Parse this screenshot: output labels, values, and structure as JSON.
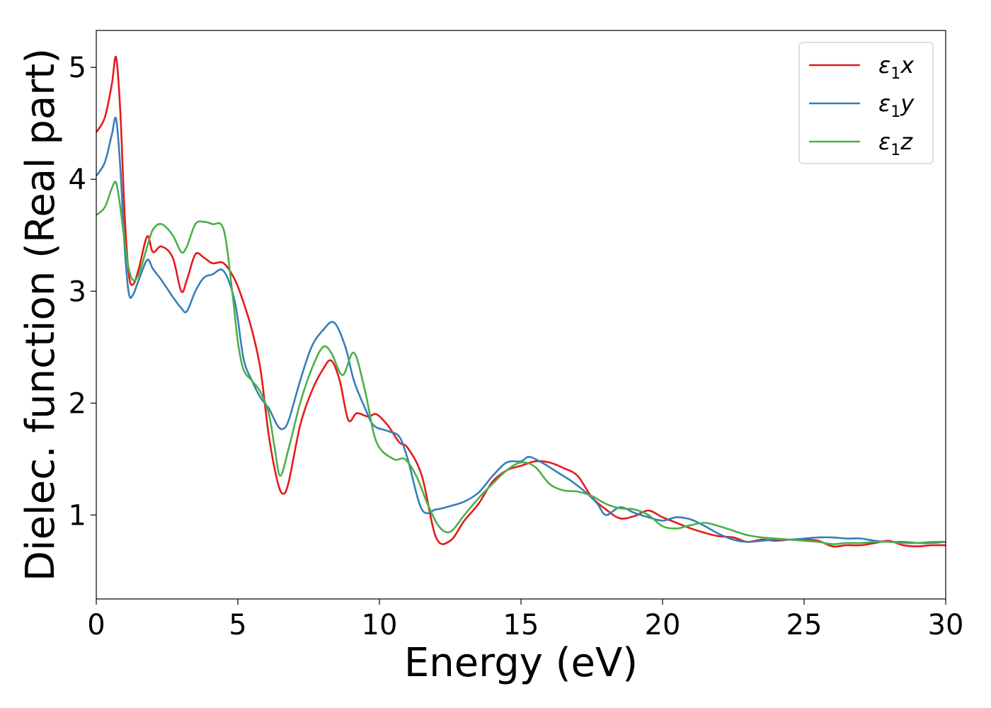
{
  "chart_data": {
    "type": "line",
    "title": "",
    "xlabel": "Energy (eV)",
    "ylabel": "Dielec. function (Real part)",
    "xlim": [
      0,
      30
    ],
    "ylim": [
      0.25,
      5.33
    ],
    "xticks": [
      0,
      5,
      10,
      15,
      20,
      25,
      30
    ],
    "yticks": [
      1,
      2,
      3,
      4,
      5
    ],
    "grid": false,
    "legend_position": "top-right",
    "series": [
      {
        "name": "ε1x",
        "name_base": "ε",
        "name_sub": "1",
        "name_suffix": "x",
        "color": "#e41a1c",
        "x": [
          0,
          0.3,
          0.55,
          0.7,
          0.85,
          1.0,
          1.15,
          1.3,
          1.5,
          1.8,
          2.0,
          2.3,
          2.7,
          3.0,
          3.2,
          3.5,
          3.8,
          4.1,
          4.5,
          4.9,
          5.2,
          5.5,
          5.8,
          6.1,
          6.4,
          6.6,
          6.8,
          7.2,
          7.6,
          8.0,
          8.3,
          8.6,
          8.9,
          9.2,
          9.6,
          9.9,
          10.3,
          10.7,
          11.0,
          11.5,
          12.0,
          12.5,
          13.0,
          13.5,
          14.0,
          14.5,
          15.0,
          15.5,
          16.0,
          16.5,
          17.0,
          17.5,
          18.0,
          18.5,
          19.0,
          19.5,
          20.0,
          20.5,
          21.0,
          21.5,
          22.0,
          22.5,
          23.0,
          23.5,
          24.0,
          24.5,
          25.0,
          25.5,
          26.0,
          26.5,
          27.0,
          27.5,
          28.0,
          28.5,
          29.0,
          29.5,
          30.0
        ],
        "y": [
          4.42,
          4.55,
          4.85,
          5.09,
          4.6,
          3.7,
          3.15,
          3.06,
          3.2,
          3.49,
          3.35,
          3.4,
          3.3,
          3.0,
          3.1,
          3.33,
          3.3,
          3.25,
          3.25,
          3.1,
          2.9,
          2.65,
          2.3,
          1.7,
          1.3,
          1.19,
          1.3,
          1.8,
          2.1,
          2.3,
          2.38,
          2.2,
          1.85,
          1.91,
          1.88,
          1.9,
          1.8,
          1.65,
          1.6,
          1.35,
          0.8,
          0.77,
          0.95,
          1.1,
          1.3,
          1.4,
          1.44,
          1.48,
          1.47,
          1.42,
          1.35,
          1.16,
          1.05,
          0.97,
          0.99,
          1.04,
          0.98,
          0.93,
          0.88,
          0.84,
          0.81,
          0.8,
          0.76,
          0.78,
          0.77,
          0.78,
          0.78,
          0.77,
          0.72,
          0.73,
          0.73,
          0.75,
          0.77,
          0.73,
          0.72,
          0.73,
          0.73
        ]
      },
      {
        "name": "ε1y",
        "name_base": "ε",
        "name_sub": "1",
        "name_suffix": "y",
        "color": "#377eb8",
        "x": [
          0,
          0.3,
          0.55,
          0.7,
          0.85,
          1.0,
          1.15,
          1.3,
          1.5,
          1.8,
          2.0,
          2.3,
          2.7,
          3.0,
          3.2,
          3.5,
          3.8,
          4.1,
          4.5,
          4.9,
          5.2,
          5.5,
          5.8,
          6.1,
          6.4,
          6.6,
          6.8,
          7.2,
          7.6,
          8.0,
          8.4,
          8.8,
          9.1,
          9.5,
          9.8,
          10.3,
          10.7,
          11.0,
          11.5,
          12.0,
          12.5,
          13.0,
          13.5,
          14.0,
          14.5,
          15.0,
          15.3,
          15.8,
          16.3,
          16.8,
          17.3,
          17.7,
          18.0,
          18.5,
          19.0,
          19.5,
          20.0,
          20.5,
          21.0,
          21.5,
          22.0,
          22.5,
          23.0,
          23.5,
          24.0,
          24.5,
          25.0,
          25.5,
          26.0,
          26.5,
          27.0,
          27.5,
          28.0,
          28.5,
          29.0,
          29.5,
          30.0
        ],
        "y": [
          4.03,
          4.15,
          4.4,
          4.54,
          4.1,
          3.4,
          2.98,
          2.97,
          3.1,
          3.28,
          3.2,
          3.1,
          2.95,
          2.85,
          2.82,
          3.0,
          3.12,
          3.15,
          3.18,
          2.9,
          2.4,
          2.2,
          2.05,
          1.95,
          1.8,
          1.77,
          1.85,
          2.2,
          2.5,
          2.65,
          2.72,
          2.5,
          2.2,
          1.95,
          1.8,
          1.75,
          1.7,
          1.5,
          1.05,
          1.05,
          1.08,
          1.12,
          1.2,
          1.35,
          1.47,
          1.48,
          1.52,
          1.46,
          1.38,
          1.3,
          1.2,
          1.1,
          1.0,
          1.07,
          1.02,
          0.98,
          0.95,
          0.98,
          0.96,
          0.9,
          0.83,
          0.78,
          0.76,
          0.77,
          0.78,
          0.78,
          0.79,
          0.8,
          0.8,
          0.79,
          0.79,
          0.77,
          0.76,
          0.76,
          0.75,
          0.75,
          0.76
        ]
      },
      {
        "name": "ε1z",
        "name_base": "ε",
        "name_sub": "1",
        "name_suffix": "z",
        "color": "#4daf4a",
        "x": [
          0,
          0.3,
          0.55,
          0.7,
          0.85,
          1.0,
          1.15,
          1.3,
          1.5,
          1.8,
          2.0,
          2.3,
          2.7,
          3.0,
          3.2,
          3.5,
          3.8,
          4.1,
          4.5,
          4.8,
          5.0,
          5.2,
          5.5,
          5.8,
          6.1,
          6.3,
          6.5,
          6.8,
          7.2,
          7.6,
          8.0,
          8.3,
          8.7,
          9.1,
          9.5,
          9.9,
          10.5,
          10.9,
          11.3,
          11.7,
          12.1,
          12.5,
          13.0,
          13.5,
          14.0,
          14.5,
          15.0,
          15.5,
          16.0,
          16.5,
          17.0,
          17.5,
          18.0,
          18.5,
          19.0,
          19.5,
          20.0,
          20.5,
          21.0,
          21.5,
          22.0,
          22.5,
          23.0,
          23.5,
          24.0,
          24.5,
          25.0,
          25.5,
          26.0,
          26.5,
          27.0,
          27.5,
          28.0,
          28.5,
          29.0,
          29.5,
          30.0
        ],
        "y": [
          3.68,
          3.75,
          3.92,
          3.97,
          3.75,
          3.45,
          3.2,
          3.1,
          3.15,
          3.4,
          3.55,
          3.6,
          3.5,
          3.35,
          3.4,
          3.6,
          3.62,
          3.6,
          3.55,
          3.0,
          2.55,
          2.3,
          2.2,
          2.1,
          1.9,
          1.6,
          1.35,
          1.6,
          2.0,
          2.3,
          2.5,
          2.45,
          2.25,
          2.45,
          2.1,
          1.65,
          1.5,
          1.5,
          1.35,
          1.1,
          0.9,
          0.85,
          1.0,
          1.15,
          1.28,
          1.4,
          1.47,
          1.43,
          1.28,
          1.22,
          1.21,
          1.17,
          1.1,
          1.06,
          1.05,
          1.0,
          0.9,
          0.88,
          0.91,
          0.93,
          0.9,
          0.86,
          0.82,
          0.8,
          0.79,
          0.78,
          0.77,
          0.76,
          0.74,
          0.75,
          0.75,
          0.76,
          0.76,
          0.75,
          0.75,
          0.76,
          0.76
        ]
      }
    ]
  }
}
